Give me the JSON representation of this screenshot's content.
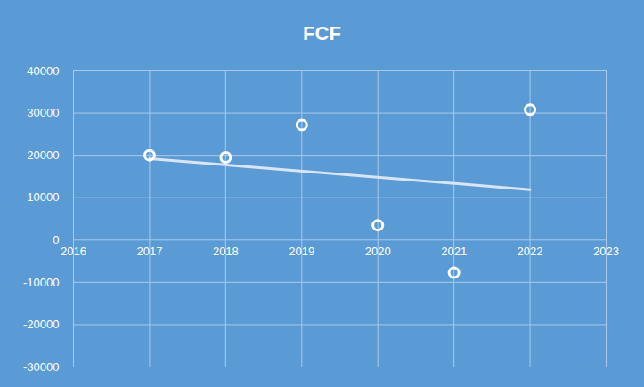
{
  "chart_data": {
    "type": "scatter",
    "title": "FCF",
    "x": [
      2017,
      2018,
      2019,
      2020,
      2021,
      2022
    ],
    "values": [
      20000,
      19500,
      27200,
      3500,
      -7700,
      30800
    ],
    "color": "#ffffff",
    "marker": "circle",
    "trend": {
      "x": [
        2017,
        2022
      ],
      "values": [
        19200,
        11900
      ],
      "color": "#dae5f4",
      "line_style": "solid"
    },
    "xlim": [
      2016,
      2023
    ],
    "xticks": [
      2016,
      2017,
      2018,
      2019,
      2020,
      2021,
      2022,
      2023
    ],
    "ylim": [
      -30000,
      40000
    ],
    "yticks": [
      -30000,
      -20000,
      -10000,
      0,
      10000,
      20000,
      30000,
      40000
    ],
    "grid": true
  }
}
